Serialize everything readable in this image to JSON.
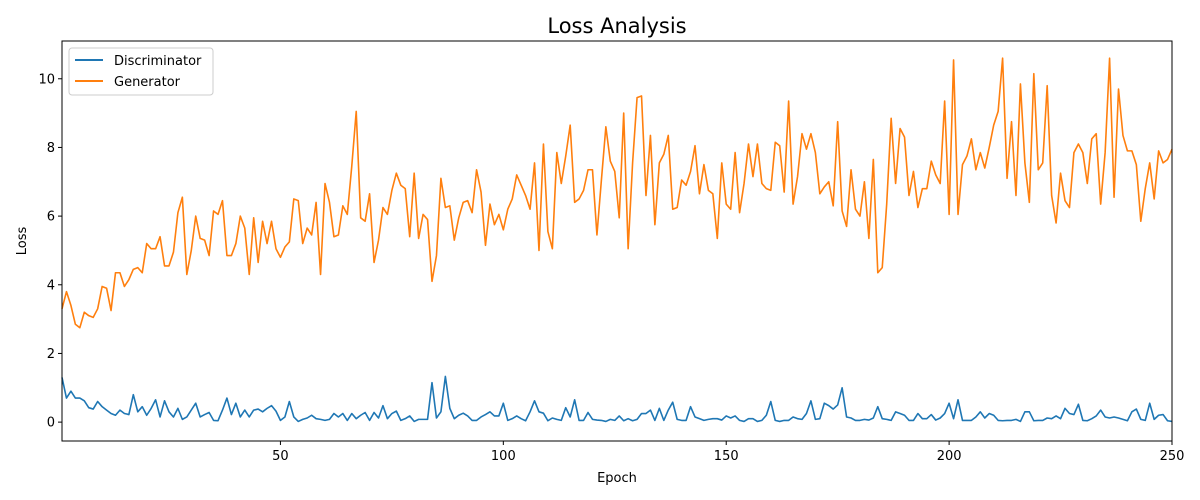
{
  "chart_data": {
    "type": "line",
    "title": "Loss Analysis",
    "xlabel": "Epoch",
    "ylabel": "Loss",
    "xlim": [
      1,
      250
    ],
    "ylim": [
      -0.55,
      11.1
    ],
    "xticks": [
      50,
      100,
      150,
      200,
      250
    ],
    "yticks": [
      0,
      2,
      4,
      6,
      8,
      10
    ],
    "grid": false,
    "legend_position": "top-left",
    "series": [
      {
        "name": "Discriminator",
        "color": "#1f77b4",
        "x": [
          1,
          2,
          3,
          4,
          5,
          6,
          7,
          8,
          9,
          10,
          11,
          12,
          13,
          14,
          15,
          16,
          17,
          18,
          19,
          20,
          21,
          22,
          23,
          24,
          25,
          26,
          27,
          28,
          29,
          30,
          31,
          32,
          33,
          34,
          35,
          36,
          37,
          38,
          39,
          40,
          41,
          42,
          43,
          44,
          45,
          46,
          47,
          48,
          49,
          50,
          51,
          52,
          53,
          54,
          55,
          56,
          57,
          58,
          59,
          60,
          61,
          62,
          63,
          64,
          65,
          66,
          67,
          68,
          69,
          70,
          71,
          72,
          73,
          74,
          75,
          76,
          77,
          78,
          79,
          80,
          81,
          82,
          83,
          84,
          85,
          86,
          87,
          88,
          89,
          90,
          91,
          92,
          93,
          94,
          95,
          96,
          97,
          98,
          99,
          100,
          101,
          102,
          103,
          104,
          105,
          106,
          107,
          108,
          109,
          110,
          111,
          112,
          113,
          114,
          115,
          116,
          117,
          118,
          119,
          120,
          121,
          122,
          123,
          124,
          125,
          126,
          127,
          128,
          129,
          130,
          131,
          132,
          133,
          134,
          135,
          136,
          137,
          138,
          139,
          140,
          141,
          142,
          143,
          144,
          145,
          146,
          147,
          148,
          149,
          150,
          151,
          152,
          153,
          154,
          155,
          156,
          157,
          158,
          159,
          160,
          161,
          162,
          163,
          164,
          165,
          166,
          167,
          168,
          169,
          170,
          171,
          172,
          173,
          174,
          175,
          176,
          177,
          178,
          179,
          180,
          181,
          182,
          183,
          184,
          185,
          186,
          187,
          188,
          189,
          190,
          191,
          192,
          193,
          194,
          195,
          196,
          197,
          198,
          199,
          200,
          201,
          202,
          203,
          204,
          205,
          206,
          207,
          208,
          209,
          210,
          211,
          212,
          213,
          214,
          215,
          216,
          217,
          218,
          219,
          220,
          221,
          222,
          223,
          224,
          225,
          226,
          227,
          228,
          229,
          230,
          231,
          232,
          233,
          234,
          235,
          236,
          237,
          238,
          239,
          240,
          241,
          242,
          243,
          244,
          245,
          246,
          247,
          248,
          249,
          250
        ],
        "values": [
          1.3,
          0.7,
          0.9,
          0.7,
          0.7,
          0.62,
          0.42,
          0.38,
          0.6,
          0.45,
          0.35,
          0.25,
          0.2,
          0.35,
          0.25,
          0.22,
          0.8,
          0.3,
          0.45,
          0.2,
          0.4,
          0.65,
          0.15,
          0.62,
          0.3,
          0.15,
          0.4,
          0.08,
          0.15,
          0.35,
          0.55,
          0.15,
          0.22,
          0.28,
          0.05,
          0.04,
          0.35,
          0.7,
          0.22,
          0.55,
          0.15,
          0.35,
          0.15,
          0.35,
          0.38,
          0.3,
          0.4,
          0.48,
          0.32,
          0.05,
          0.15,
          0.6,
          0.15,
          0.02,
          0.08,
          0.12,
          0.2,
          0.1,
          0.08,
          0.05,
          0.08,
          0.25,
          0.15,
          0.25,
          0.05,
          0.25,
          0.1,
          0.2,
          0.28,
          0.05,
          0.28,
          0.12,
          0.48,
          0.1,
          0.25,
          0.32,
          0.05,
          0.1,
          0.18,
          0.02,
          0.08,
          0.08,
          0.08,
          1.15,
          0.12,
          0.3,
          1.33,
          0.4,
          0.1,
          0.2,
          0.26,
          0.18,
          0.05,
          0.05,
          0.15,
          0.22,
          0.3,
          0.18,
          0.18,
          0.55,
          0.05,
          0.1,
          0.18,
          0.1,
          0.04,
          0.3,
          0.62,
          0.3,
          0.26,
          0.04,
          0.12,
          0.08,
          0.05,
          0.42,
          0.15,
          0.65,
          0.05,
          0.05,
          0.28,
          0.08,
          0.06,
          0.05,
          0.02,
          0.08,
          0.05,
          0.18,
          0.04,
          0.1,
          0.04,
          0.08,
          0.25,
          0.25,
          0.35,
          0.05,
          0.4,
          0.05,
          0.35,
          0.58,
          0.08,
          0.05,
          0.05,
          0.45,
          0.15,
          0.1,
          0.05,
          0.08,
          0.1,
          0.1,
          0.06,
          0.18,
          0.12,
          0.18,
          0.05,
          0.02,
          0.1,
          0.1,
          0.02,
          0.05,
          0.2,
          0.6,
          0.05,
          0.02,
          0.05,
          0.05,
          0.15,
          0.1,
          0.08,
          0.25,
          0.62,
          0.08,
          0.1,
          0.55,
          0.48,
          0.38,
          0.5,
          1.0,
          0.15,
          0.12,
          0.05,
          0.05,
          0.08,
          0.06,
          0.12,
          0.45,
          0.1,
          0.08,
          0.05,
          0.3,
          0.25,
          0.2,
          0.05,
          0.05,
          0.25,
          0.1,
          0.1,
          0.22,
          0.06,
          0.12,
          0.25,
          0.55,
          0.1,
          0.65,
          0.05,
          0.05,
          0.05,
          0.15,
          0.3,
          0.12,
          0.25,
          0.2,
          0.05,
          0.04,
          0.05,
          0.05,
          0.08,
          0.02,
          0.3,
          0.3,
          0.04,
          0.05,
          0.05,
          0.12,
          0.1,
          0.18,
          0.1,
          0.4,
          0.25,
          0.22,
          0.52,
          0.05,
          0.04,
          0.1,
          0.18,
          0.35,
          0.15,
          0.12,
          0.15,
          0.12,
          0.08,
          0.04,
          0.3,
          0.38,
          0.08,
          0.05,
          0.55,
          0.08,
          0.2,
          0.22,
          0.04,
          0.02
        ]
      },
      {
        "name": "Generator",
        "color": "#ff7f0e",
        "x": [
          1,
          2,
          3,
          4,
          5,
          6,
          7,
          8,
          9,
          10,
          11,
          12,
          13,
          14,
          15,
          16,
          17,
          18,
          19,
          20,
          21,
          22,
          23,
          24,
          25,
          26,
          27,
          28,
          29,
          30,
          31,
          32,
          33,
          34,
          35,
          36,
          37,
          38,
          39,
          40,
          41,
          42,
          43,
          44,
          45,
          46,
          47,
          48,
          49,
          50,
          51,
          52,
          53,
          54,
          55,
          56,
          57,
          58,
          59,
          60,
          61,
          62,
          63,
          64,
          65,
          66,
          67,
          68,
          69,
          70,
          71,
          72,
          73,
          74,
          75,
          76,
          77,
          78,
          79,
          80,
          81,
          82,
          83,
          84,
          85,
          86,
          87,
          88,
          89,
          90,
          91,
          92,
          93,
          94,
          95,
          96,
          97,
          98,
          99,
          100,
          101,
          102,
          103,
          104,
          105,
          106,
          107,
          108,
          109,
          110,
          111,
          112,
          113,
          114,
          115,
          116,
          117,
          118,
          119,
          120,
          121,
          122,
          123,
          124,
          125,
          126,
          127,
          128,
          129,
          130,
          131,
          132,
          133,
          134,
          135,
          136,
          137,
          138,
          139,
          140,
          141,
          142,
          143,
          144,
          145,
          146,
          147,
          148,
          149,
          150,
          151,
          152,
          153,
          154,
          155,
          156,
          157,
          158,
          159,
          160,
          161,
          162,
          163,
          164,
          165,
          166,
          167,
          168,
          169,
          170,
          171,
          172,
          173,
          174,
          175,
          176,
          177,
          178,
          179,
          180,
          181,
          182,
          183,
          184,
          185,
          186,
          187,
          188,
          189,
          190,
          191,
          192,
          193,
          194,
          195,
          196,
          197,
          198,
          199,
          200,
          201,
          202,
          203,
          204,
          205,
          206,
          207,
          208,
          209,
          210,
          211,
          212,
          213,
          214,
          215,
          216,
          217,
          218,
          219,
          220,
          221,
          222,
          223,
          224,
          225,
          226,
          227,
          228,
          229,
          230,
          231,
          232,
          233,
          234,
          235,
          236,
          237,
          238,
          239,
          240,
          241,
          242,
          243,
          244,
          245,
          246,
          247,
          248,
          249,
          250
        ],
        "values": [
          3.3,
          3.8,
          3.4,
          2.85,
          2.75,
          3.2,
          3.1,
          3.05,
          3.3,
          3.95,
          3.9,
          3.25,
          4.35,
          4.35,
          3.95,
          4.15,
          4.45,
          4.5,
          4.35,
          5.2,
          5.05,
          5.05,
          5.4,
          4.55,
          4.55,
          4.95,
          6.1,
          6.55,
          4.3,
          5.0,
          6.0,
          5.35,
          5.3,
          4.85,
          6.15,
          6.05,
          6.45,
          4.85,
          4.85,
          5.2,
          6.0,
          5.65,
          4.3,
          5.95,
          4.65,
          5.85,
          5.2,
          5.85,
          5.05,
          4.8,
          5.1,
          5.25,
          6.5,
          6.45,
          5.2,
          5.65,
          5.45,
          6.4,
          4.3,
          6.95,
          6.4,
          5.4,
          5.45,
          6.3,
          6.05,
          7.45,
          9.05,
          5.95,
          5.85,
          6.65,
          4.65,
          5.3,
          6.25,
          6.05,
          6.75,
          7.25,
          6.9,
          6.8,
          5.4,
          7.25,
          5.35,
          6.05,
          5.9,
          4.1,
          4.85,
          7.1,
          6.25,
          6.3,
          5.3,
          5.95,
          6.4,
          6.45,
          6.1,
          7.35,
          6.7,
          5.15,
          6.35,
          5.75,
          6.05,
          5.6,
          6.2,
          6.5,
          7.2,
          6.9,
          6.6,
          6.2,
          7.55,
          5.0,
          8.1,
          5.55,
          5.05,
          7.85,
          6.95,
          7.75,
          8.65,
          6.4,
          6.5,
          6.75,
          7.35,
          7.35,
          5.45,
          7.05,
          8.6,
          7.6,
          7.3,
          5.95,
          9.0,
          5.05,
          7.55,
          9.45,
          9.5,
          6.6,
          8.35,
          5.75,
          7.55,
          7.8,
          8.35,
          6.2,
          6.25,
          7.05,
          6.9,
          7.3,
          8.05,
          6.65,
          7.5,
          6.75,
          6.65,
          5.35,
          7.55,
          6.35,
          6.2,
          7.85,
          6.1,
          6.95,
          8.1,
          7.15,
          8.1,
          6.95,
          6.8,
          6.75,
          8.15,
          8.05,
          6.7,
          9.35,
          6.35,
          7.15,
          8.4,
          7.95,
          8.4,
          7.85,
          6.65,
          6.85,
          7.0,
          6.3,
          8.75,
          6.15,
          5.7,
          7.35,
          6.2,
          6.0,
          7.0,
          5.35,
          7.65,
          4.35,
          4.5,
          6.35,
          8.85,
          6.95,
          8.55,
          8.3,
          6.6,
          7.3,
          6.25,
          6.8,
          6.8,
          7.6,
          7.2,
          6.95,
          9.35,
          6.05,
          10.55,
          6.05,
          7.5,
          7.75,
          8.25,
          7.35,
          7.85,
          7.4,
          8.0,
          8.65,
          9.05,
          10.6,
          7.1,
          8.75,
          6.6,
          9.85,
          7.55,
          6.4,
          10.15,
          7.35,
          7.55,
          9.8,
          6.6,
          5.8,
          7.25,
          6.45,
          6.25,
          7.85,
          8.1,
          7.85,
          6.95,
          8.25,
          8.4,
          6.35,
          7.85,
          10.6,
          6.55,
          9.7,
          8.35,
          7.9,
          7.9,
          7.5,
          5.85,
          6.8,
          7.55,
          6.5,
          7.9,
          7.55,
          7.65,
          7.95
        ]
      }
    ]
  }
}
